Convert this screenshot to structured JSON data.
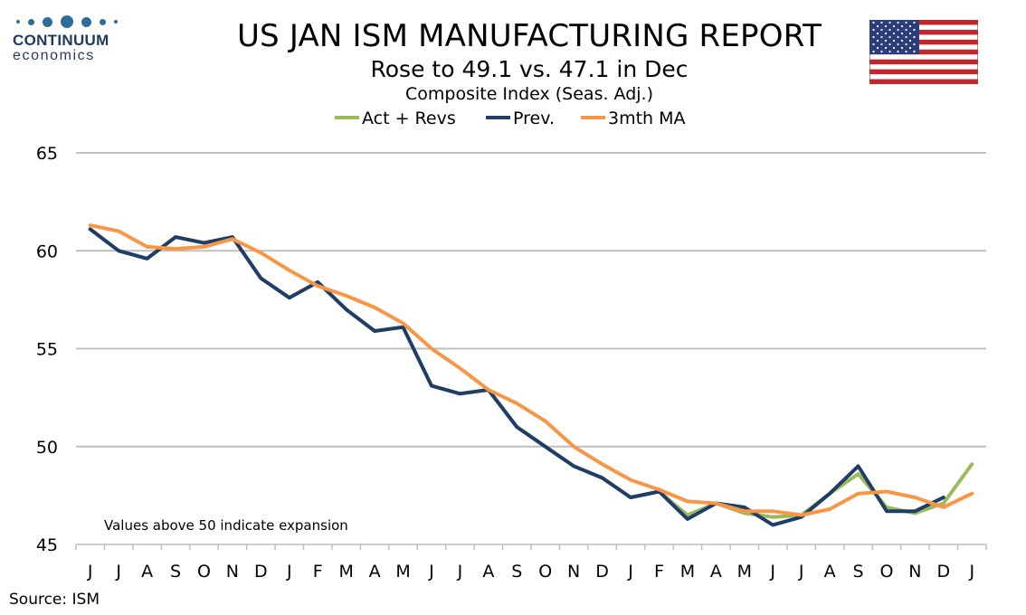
{
  "brand": {
    "name": "CONTINUUM",
    "sub": "economics"
  },
  "title": "US JAN ISM MANUFACTURING REPORT",
  "subtitle": "Rose to 49.1 vs. 47.1 in Dec",
  "subtitle2": "Composite Index (Seas. Adj.)",
  "source": "Source: ISM",
  "colors": {
    "act": "#9bbb59",
    "prev": "#1f3d66",
    "ma": "#f79646",
    "grid": "#bfbfbf"
  },
  "chart_data": {
    "type": "line",
    "note": "Values above 50 indicate expansion",
    "ylim": [
      45,
      65
    ],
    "yticks": [
      45,
      50,
      55,
      60,
      65
    ],
    "categories": [
      "J",
      "J",
      "A",
      "S",
      "O",
      "N",
      "D",
      "J",
      "F",
      "M",
      "A",
      "M",
      "J",
      "J",
      "A",
      "S",
      "O",
      "N",
      "D",
      "J",
      "F",
      "M",
      "A",
      "M",
      "J",
      "J",
      "A",
      "S",
      "O",
      "N",
      "D",
      "J"
    ],
    "legend": [
      "Act + Revs",
      "Prev.",
      "3mth MA"
    ],
    "series": [
      {
        "name": "Act + Revs",
        "color": "#9bbb59",
        "values": [
          61.1,
          60.0,
          59.6,
          60.7,
          60.4,
          60.7,
          58.6,
          57.6,
          58.4,
          57.0,
          55.9,
          56.1,
          53.1,
          52.7,
          52.9,
          51.0,
          50.0,
          49.0,
          48.4,
          47.4,
          47.7,
          46.5,
          47.1,
          46.6,
          46.4,
          46.5,
          47.6,
          48.6,
          46.9,
          46.6,
          47.1,
          49.1
        ]
      },
      {
        "name": "Prev.",
        "color": "#1f3d66",
        "values": [
          61.1,
          60.0,
          59.6,
          60.7,
          60.4,
          60.7,
          58.6,
          57.6,
          58.4,
          57.0,
          55.9,
          56.1,
          53.1,
          52.7,
          52.9,
          51.0,
          50.0,
          49.0,
          48.4,
          47.4,
          47.7,
          46.3,
          47.1,
          46.9,
          46.0,
          46.4,
          47.6,
          49.0,
          46.7,
          46.7,
          47.4,
          null
        ]
      },
      {
        "name": "3mth MA",
        "color": "#f79646",
        "values": [
          61.3,
          61.0,
          60.2,
          60.1,
          60.2,
          60.6,
          59.9,
          59.0,
          58.2,
          57.7,
          57.1,
          56.3,
          55.0,
          54.0,
          52.9,
          52.2,
          51.3,
          50.0,
          49.1,
          48.3,
          47.8,
          47.2,
          47.1,
          46.7,
          46.7,
          46.5,
          46.8,
          47.6,
          47.7,
          47.4,
          46.9,
          47.6
        ]
      }
    ]
  }
}
